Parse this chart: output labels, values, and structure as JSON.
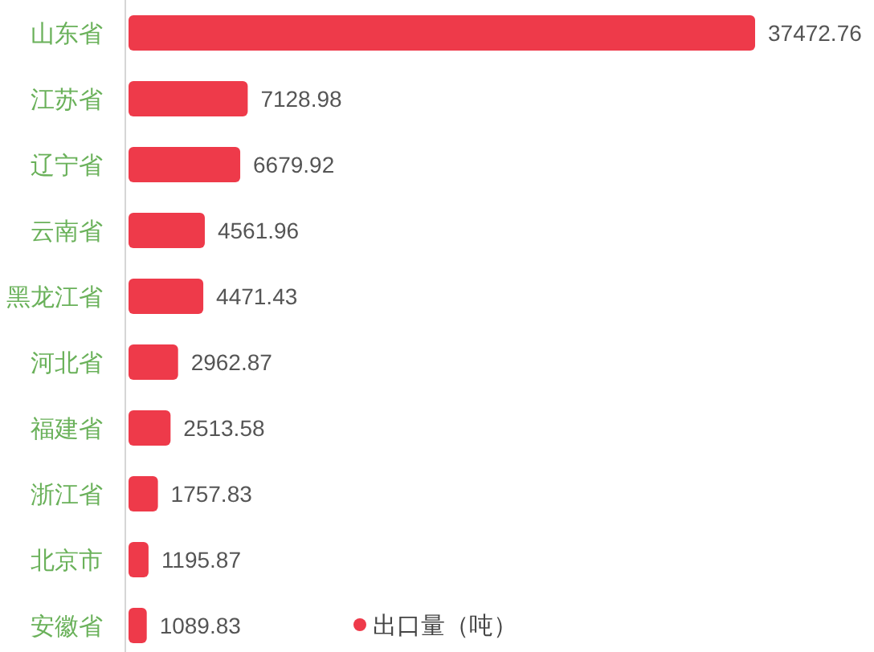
{
  "chart_data": {
    "type": "bar",
    "orientation": "horizontal",
    "categories": [
      "山东省",
      "江苏省",
      "辽宁省",
      "云南省",
      "黑龙江省",
      "河北省",
      "福建省",
      "浙江省",
      "北京市",
      "安徽省"
    ],
    "series": [
      {
        "name": "出口量（吨）",
        "color": "#ee3a4a",
        "values": [
          37472.76,
          7128.98,
          6679.92,
          4561.96,
          4471.43,
          2962.87,
          2513.58,
          1757.83,
          1195.87,
          1089.83
        ]
      }
    ],
    "data_labels": true,
    "legend": "bottom",
    "tick_labels": "y"
  }
}
